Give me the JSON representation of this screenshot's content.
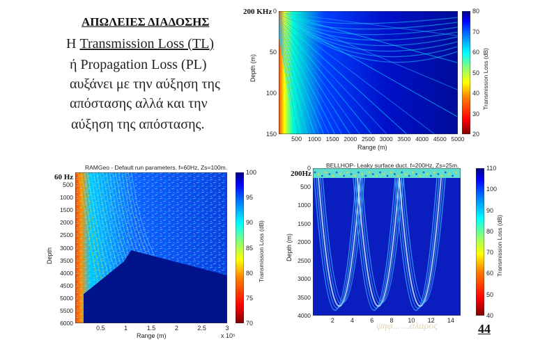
{
  "text": {
    "title": "ΑΠΩΛΕΙΕΣ ΔΙΑΔΟΣΗΣ",
    "line1_prefix": "Η ",
    "line1_term": "Transmission Loss (TL)",
    "line2_prefix": "ή ",
    "line2_term": "Propagation Loss (PL)",
    "line3": "αυξάνει με την αύξηση της",
    "line4": "απόστασης αλλά και την",
    "line5": "αύξηση της απόστασης."
  },
  "page_number": "44",
  "watermark": "ψηφ... ...άλαρος",
  "colors": {
    "jet": [
      "#00007f",
      "#0000ff",
      "#007fff",
      "#00ffff",
      "#7fff7f",
      "#ffff00",
      "#ff7f00",
      "#ff0000",
      "#7f0000"
    ]
  },
  "chart_data": [
    {
      "type": "heatmap",
      "freq_label": "200 KHz",
      "title": "",
      "xlabel": "Range (m)",
      "ylabel": "Depth (m)",
      "colorbar_label": "Transmission Loss (dB)",
      "xlim": [
        0,
        5000
      ],
      "ylim": [
        0,
        150
      ],
      "x_ticks": [
        "500",
        "1000",
        "1500",
        "2000",
        "2500",
        "3000",
        "3500",
        "4000",
        "4500",
        "5000"
      ],
      "y_ticks": [
        "0",
        "50",
        "100",
        "150"
      ],
      "colorbar_ticks": [
        "20",
        "30",
        "40",
        "50",
        "60",
        "70",
        "80"
      ],
      "colorbar_range": [
        20,
        80
      ]
    },
    {
      "type": "heatmap",
      "freq_label": "60 Hz",
      "title": "RAMGeo - Default run parameters. f=60Hz, Zs=100m.",
      "xlabel": "Range (m)",
      "x_exponent": "x 10⁵",
      "ylabel": "Depth",
      "colorbar_label": "Transmission Loss (dB)",
      "xlim": [
        0,
        300000
      ],
      "ylim": [
        0,
        6000
      ],
      "x_ticks": [
        "0.5",
        "1",
        "1.5",
        "2",
        "2.5",
        "3"
      ],
      "y_ticks": [
        "500",
        "1000",
        "1500",
        "2000",
        "2500",
        "3000",
        "3500",
        "4000",
        "4500",
        "5000",
        "5500",
        "6000"
      ],
      "colorbar_ticks": [
        "70",
        "75",
        "80",
        "85",
        "90",
        "95",
        "100"
      ],
      "colorbar_range": [
        70,
        100
      ]
    },
    {
      "type": "heatmap",
      "freq_label": "200Hz",
      "title": "BELLHOP- Leaky surface duct. f=200Hz, Zs=25m.",
      "xlabel": "Range (km)",
      "ylabel": "Depth (m)",
      "colorbar_label": "Transmission Loss (dB)",
      "xlim": [
        0,
        15
      ],
      "ylim": [
        0,
        4000
      ],
      "x_ticks": [
        "2",
        "4",
        "6",
        "8",
        "10",
        "12",
        "14"
      ],
      "y_ticks": [
        "0",
        "500",
        "1000",
        "1500",
        "2000",
        "2500",
        "3000",
        "3500",
        "4000"
      ],
      "colorbar_ticks": [
        "40",
        "50",
        "60",
        "70",
        "80",
        "90",
        "100",
        "110"
      ],
      "colorbar_range": [
        40,
        110
      ]
    }
  ]
}
